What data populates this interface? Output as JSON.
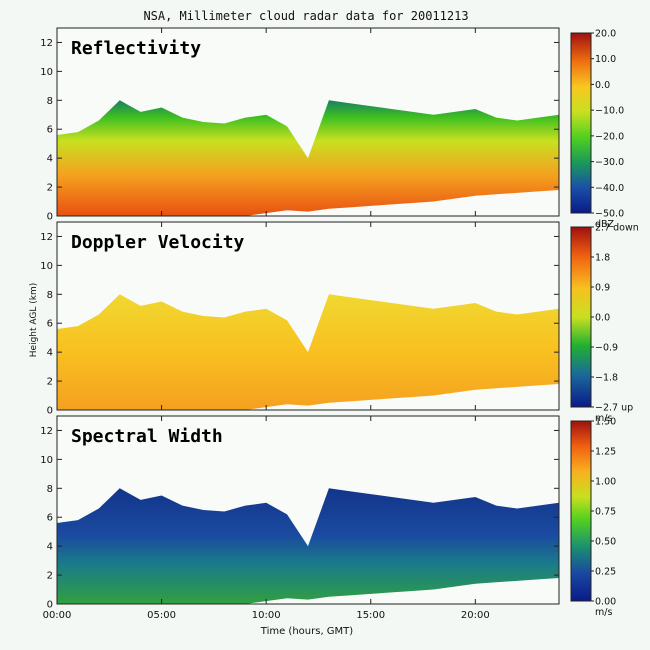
{
  "chart_data": {
    "type": "heatmap",
    "title": "NSA, Millimeter cloud radar data for 20011213",
    "xlabel": "Time (hours, GMT)",
    "ylabel": "Height AGL (km)",
    "xlim": [
      0,
      24
    ],
    "ylim": [
      0,
      13
    ],
    "x_tick_labels": [
      "00:00",
      "05:00",
      "10:00",
      "15:00",
      "20:00"
    ],
    "x_ticks_hours": [
      0,
      5,
      10,
      15,
      20
    ],
    "y_ticks": [
      0,
      2,
      4,
      6,
      8,
      10,
      12
    ],
    "panels": [
      {
        "name": "Reflectivity",
        "unit": "dBZ",
        "vmin": -50,
        "vmax": 20,
        "colorbar_labels": [
          "20.0",
          "10.0",
          "0.0",
          "−10.0",
          "−20.0",
          "−30.0",
          "−40.0",
          "−50.0"
        ],
        "cloud_top_km": [
          5.6,
          5.8,
          6.6,
          8.0,
          7.2,
          7.5,
          6.8,
          6.5,
          6.4,
          6.8,
          7.0,
          6.2,
          4.0,
          8.0,
          7.8,
          7.6,
          7.4,
          7.2,
          7.0,
          7.2,
          7.4,
          6.8,
          6.6,
          6.8,
          7.0
        ],
        "cloud_base_km": [
          0.0,
          0.0,
          0.0,
          0.0,
          0.0,
          0.0,
          0.0,
          0.0,
          0.0,
          0.0,
          0.2,
          0.4,
          0.3,
          0.5,
          0.6,
          0.7,
          0.8,
          0.9,
          1.0,
          1.2,
          1.4,
          1.5,
          1.6,
          1.7,
          1.8
        ]
      },
      {
        "name": "Doppler Velocity",
        "unit": "m/s",
        "vmin": -2.7,
        "vmax": 2.7,
        "colorbar_labels": [
          "2.7 down",
          "1.8",
          "0.9",
          "0.0",
          "−0.9",
          "−1.8",
          "−2.7 up"
        ],
        "cloud_top_km": [
          5.6,
          5.8,
          6.6,
          8.0,
          7.2,
          7.5,
          6.8,
          6.5,
          6.4,
          6.8,
          7.0,
          6.2,
          4.0,
          8.0,
          7.8,
          7.6,
          7.4,
          7.2,
          7.0,
          7.2,
          7.4,
          6.8,
          6.6,
          6.8,
          7.0
        ],
        "cloud_base_km": [
          0.0,
          0.0,
          0.0,
          0.0,
          0.0,
          0.0,
          0.0,
          0.0,
          0.0,
          0.0,
          0.2,
          0.4,
          0.3,
          0.5,
          0.6,
          0.7,
          0.8,
          0.9,
          1.0,
          1.2,
          1.4,
          1.5,
          1.6,
          1.7,
          1.8
        ]
      },
      {
        "name": "Spectral Width",
        "unit": "m/s",
        "vmin": 0.0,
        "vmax": 1.5,
        "colorbar_labels": [
          "1.50",
          "1.25",
          "1.00",
          "0.75",
          "0.50",
          "0.25",
          "0.00"
        ],
        "cloud_top_km": [
          5.6,
          5.8,
          6.6,
          8.0,
          7.2,
          7.5,
          6.8,
          6.5,
          6.4,
          6.8,
          7.0,
          6.2,
          4.0,
          8.0,
          7.8,
          7.6,
          7.4,
          7.2,
          7.0,
          7.2,
          7.4,
          6.8,
          6.6,
          6.8,
          7.0
        ],
        "cloud_base_km": [
          0.0,
          0.0,
          0.0,
          0.0,
          0.0,
          0.0,
          0.0,
          0.0,
          0.0,
          0.0,
          0.2,
          0.4,
          0.3,
          0.5,
          0.6,
          0.7,
          0.8,
          0.9,
          1.0,
          1.2,
          1.4,
          1.5,
          1.6,
          1.7,
          1.8
        ]
      }
    ]
  }
}
